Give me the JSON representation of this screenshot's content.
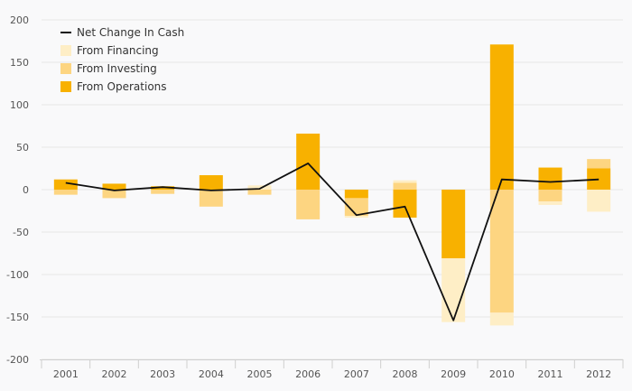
{
  "chart_data": {
    "type": "bar",
    "stacked": true,
    "title": "",
    "xlabel": "",
    "ylabel": "",
    "categories": [
      "2001",
      "2002",
      "2003",
      "2004",
      "2005",
      "2006",
      "2007",
      "2008",
      "2009",
      "2010",
      "2011",
      "2012"
    ],
    "ylim": [
      -200,
      200
    ],
    "yticks": [
      -200,
      -150,
      -100,
      -50,
      0,
      50,
      100,
      150,
      200
    ],
    "grid": true,
    "legend_position": "top-left",
    "series": [
      {
        "name": "From Operations",
        "kind": "bar",
        "color": "#f8b100",
        "values": [
          12,
          7,
          4,
          17,
          0,
          66,
          -10,
          -33,
          -81,
          171,
          26,
          25
        ]
      },
      {
        "name": "From Investing",
        "kind": "bar",
        "color": "#fdd581",
        "values": [
          -6,
          -10,
          -5,
          -20,
          -6,
          -35,
          -21,
          8,
          0,
          -145,
          -14,
          11
        ]
      },
      {
        "name": "From Financing",
        "kind": "bar",
        "color": "#feeec6",
        "values": [
          0,
          0,
          0,
          0,
          5,
          0,
          -2,
          3,
          -75,
          -15,
          -4,
          -26
        ]
      },
      {
        "name": "Net Change In Cash",
        "kind": "line",
        "color": "#111111",
        "values": [
          8,
          -1,
          3,
          -1,
          1,
          31,
          -30,
          -20,
          -154,
          12,
          9,
          12
        ]
      }
    ]
  }
}
